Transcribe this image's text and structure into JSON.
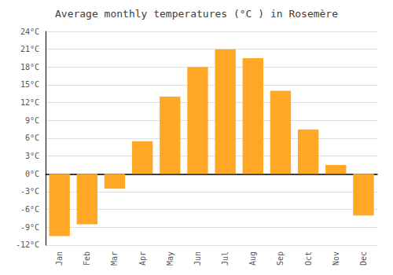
{
  "chart_data": {
    "type": "bar",
    "title": "Average monthly temperatures (°C ) in Rosemère",
    "categories": [
      "Jan",
      "Feb",
      "Mar",
      "Apr",
      "May",
      "Jun",
      "Jul",
      "Aug",
      "Sep",
      "Oct",
      "Nov",
      "Dec"
    ],
    "values": [
      -10.5,
      -8.5,
      -2.5,
      5.5,
      13.0,
      18.0,
      21.0,
      19.5,
      14.0,
      7.5,
      1.5,
      -7.0
    ],
    "color": "#FFA726",
    "ylim": [
      -12,
      24
    ],
    "yticks": [
      {
        "value": -12,
        "label": "-12°C"
      },
      {
        "value": -9,
        "label": "-9°C"
      },
      {
        "value": -6,
        "label": "-6°C"
      },
      {
        "value": -3,
        "label": "-3°C"
      },
      {
        "value": 0,
        "label": "0°C"
      },
      {
        "value": 3,
        "label": "3°C"
      },
      {
        "value": 6,
        "label": "6°C"
      },
      {
        "value": 9,
        "label": "9°C"
      },
      {
        "value": 12,
        "label": "12°C"
      },
      {
        "value": 15,
        "label": "15°C"
      },
      {
        "value": 18,
        "label": "18°C"
      },
      {
        "value": 21,
        "label": "21°C"
      },
      {
        "value": 24,
        "label": "24°C"
      }
    ],
    "grid": true
  }
}
